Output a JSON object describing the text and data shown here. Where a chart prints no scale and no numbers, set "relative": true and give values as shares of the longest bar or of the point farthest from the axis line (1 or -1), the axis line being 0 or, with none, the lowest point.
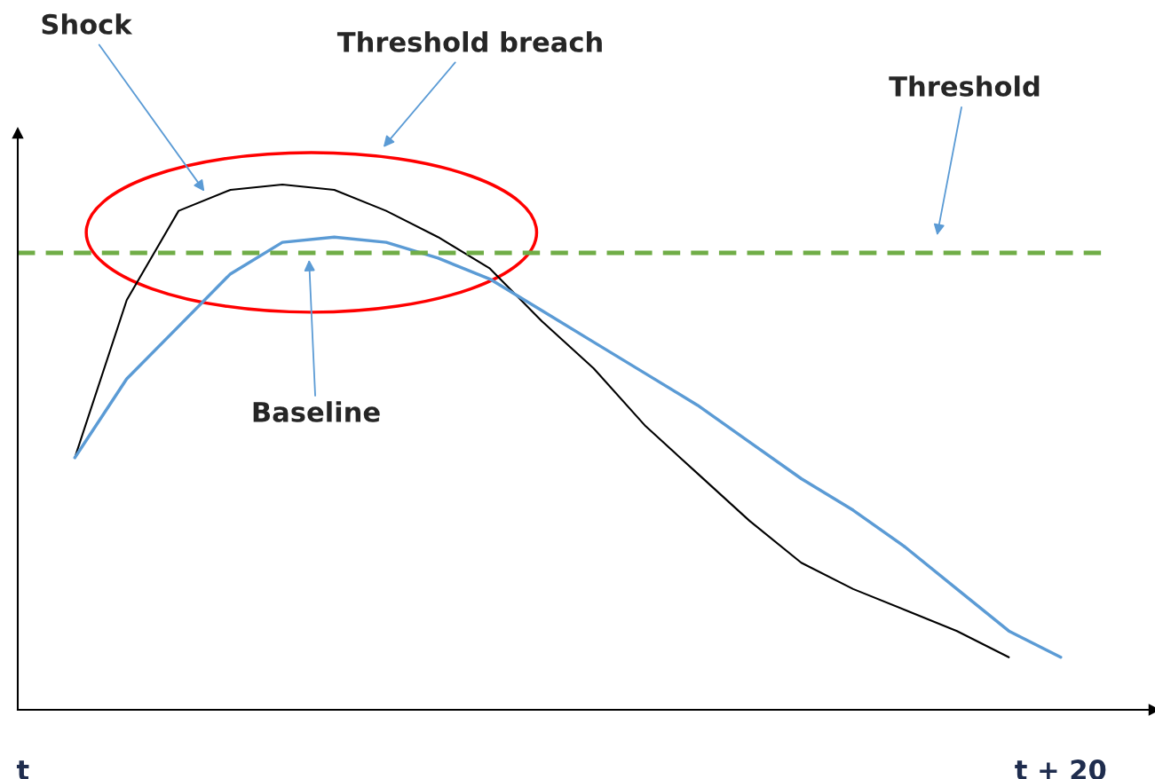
{
  "chart_data": {
    "type": "line",
    "relative": true,
    "categories": [
      "t",
      null,
      null,
      null,
      null,
      null,
      null,
      null,
      null,
      null,
      null,
      null,
      null,
      null,
      null,
      null,
      null,
      null,
      null,
      null,
      "t + 20"
    ],
    "series": [
      {
        "color": "#000000",
        "values": [
          null,
          0.48,
          0.78,
          0.95,
          0.99,
          1.0,
          0.99,
          0.95,
          0.9,
          0.84,
          0.74,
          0.65,
          0.54,
          0.45,
          0.36,
          0.28,
          0.23,
          0.19,
          0.15,
          0.1,
          null
        ]
      },
      {
        "color": "#5b9bd5",
        "values": [
          null,
          0.48,
          0.63,
          0.73,
          0.83,
          0.89,
          0.9,
          0.89,
          0.86,
          0.82,
          0.76,
          0.7,
          0.64,
          0.58,
          0.51,
          0.44,
          0.38,
          0.31,
          0.23,
          0.15,
          0.1
        ]
      }
    ],
    "ref_lines": [
      {
        "axis": "y",
        "value": 0.87,
        "color": "#70ad47",
        "line_style": "dashed"
      }
    ],
    "annotations": [
      "Shock",
      "Baseline",
      "Threshold breach",
      "Threshold"
    ],
    "grid": false,
    "legend": false
  }
}
